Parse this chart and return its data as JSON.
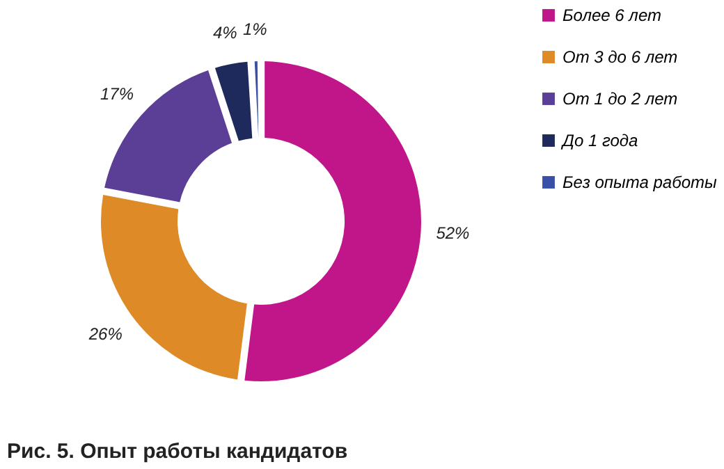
{
  "chart_data": {
    "type": "donut",
    "title": "Рис. 5. Опыт работы кандидатов",
    "categories": [
      "Более 6 лет",
      "От 3 до 6 лет",
      "От 1 до 2 лет",
      "До 1 года",
      "Без опыта работы"
    ],
    "values": [
      52,
      26,
      17,
      4,
      1
    ],
    "value_labels": [
      "52%",
      "26%",
      "17%",
      "4%",
      "1%"
    ],
    "colors": [
      "#c0168a",
      "#de8a26",
      "#5b3e96",
      "#1e2a5c",
      "#3a4fa8"
    ],
    "legend": "right"
  }
}
